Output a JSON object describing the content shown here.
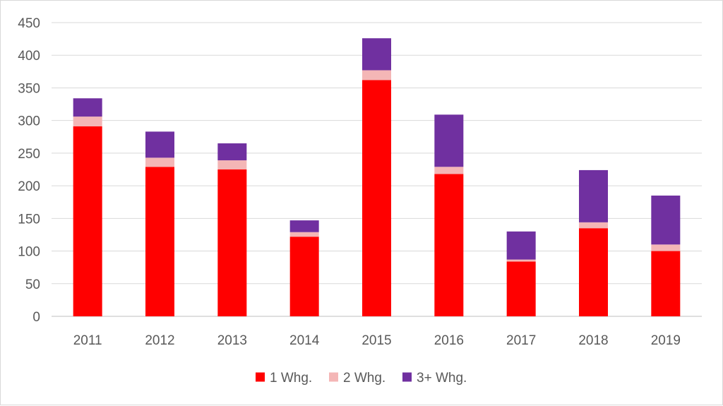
{
  "chart_data": {
    "type": "bar",
    "stacked": true,
    "title": "",
    "xlabel": "",
    "ylabel": "",
    "ylim": [
      0,
      450
    ],
    "ytick_step": 50,
    "yticks": [
      "0",
      "50",
      "100",
      "150",
      "200",
      "250",
      "300",
      "350",
      "400",
      "450"
    ],
    "grid": true,
    "legend_position": "bottom",
    "categories": [
      "2011",
      "2012",
      "2013",
      "2014",
      "2015",
      "2016",
      "2017",
      "2018",
      "2019"
    ],
    "series": [
      {
        "name": "1 Whg.",
        "color": "#ff0000",
        "values": [
          291,
          229,
          225,
          122,
          362,
          218,
          84,
          135,
          100
        ]
      },
      {
        "name": "2 Whg.",
        "color": "#f4b6b6",
        "values": [
          15,
          14,
          14,
          7,
          15,
          11,
          3,
          9,
          10
        ]
      },
      {
        "name": "3+ Whg.",
        "color": "#7030a0",
        "values": [
          28,
          40,
          26,
          18,
          49,
          80,
          43,
          80,
          75
        ]
      }
    ]
  }
}
